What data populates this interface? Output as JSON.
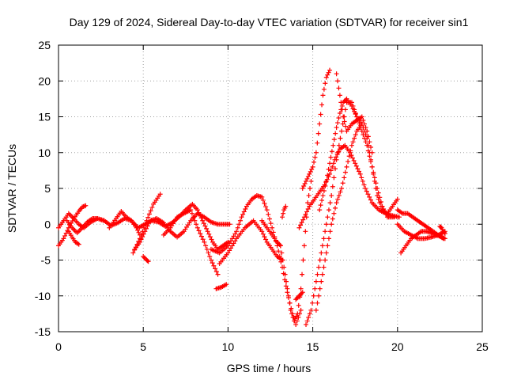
{
  "chart_data": {
    "type": "scatter",
    "title": "Day 129 of 2024, Sidereal Day-to-day VTEC variation (SDTVAR) for receiver sin1",
    "xlabel": "GPS time / hours",
    "ylabel": "SDTVAR / TECUs",
    "xlim": [
      0,
      25
    ],
    "ylim": [
      -15,
      25
    ],
    "xticks": [
      "0",
      "5",
      "10",
      "15",
      "20",
      "25"
    ],
    "yticks": [
      "-15",
      "-10",
      "-5",
      "0",
      "5",
      "10",
      "15",
      "20",
      "25"
    ],
    "grid": true,
    "legend": "none",
    "marker": "+",
    "series_color": "#ff0000",
    "series": [
      {
        "name": "track-1",
        "x": [
          0.0,
          0.3,
          0.6,
          0.9,
          1.2,
          1.5,
          1.9,
          2.3,
          2.7,
          3.1,
          3.5,
          3.9,
          4.3,
          4.7,
          5.1,
          5.5,
          5.9,
          6.3,
          6.7,
          7.1,
          7.5,
          7.9,
          8.2,
          8.5,
          8.8,
          9.1,
          9.4,
          9.7,
          10.0
        ],
        "y": [
          -0.5,
          0.5,
          1.5,
          0.8,
          0.0,
          -0.5,
          0.3,
          0.8,
          0.5,
          -0.2,
          0.2,
          0.8,
          0.5,
          -0.5,
          0.0,
          0.5,
          0.3,
          -0.3,
          0.2,
          1.0,
          2.0,
          2.8,
          2.0,
          0.5,
          -1.0,
          -2.5,
          -3.5,
          -3.0,
          -2.5
        ]
      },
      {
        "name": "track-2",
        "x": [
          0.0,
          0.3,
          0.6,
          0.9,
          1.2,
          1.4,
          1.6
        ],
        "y": [
          -3.0,
          -2.0,
          -0.5,
          0.8,
          1.8,
          2.4,
          2.6
        ]
      },
      {
        "name": "track-3",
        "x": [
          0.5,
          0.8,
          1.1,
          1.4,
          1.7,
          2.0,
          2.3,
          2.7
        ],
        "y": [
          0.5,
          -0.5,
          -1.2,
          -0.5,
          0.3,
          0.8,
          0.8,
          0.5
        ]
      },
      {
        "name": "track-4",
        "x": [
          0.6,
          0.8,
          1.0,
          1.2
        ],
        "y": [
          -1.0,
          -1.8,
          -2.5,
          -2.8
        ]
      },
      {
        "name": "track-5",
        "x": [
          3.0,
          3.4,
          3.7,
          4.0,
          4.3,
          4.6,
          4.8
        ],
        "y": [
          -0.5,
          0.8,
          1.8,
          1.0,
          0.5,
          -0.5,
          -1.5
        ]
      },
      {
        "name": "track-6",
        "x": [
          4.4,
          4.8,
          5.2,
          5.6,
          6.0
        ],
        "y": [
          -4.0,
          -2.0,
          0.5,
          2.8,
          4.2
        ]
      },
      {
        "name": "track-7",
        "x": [
          4.5,
          4.8,
          5.1,
          5.4,
          5.8,
          6.2,
          6.6,
          7.0,
          7.4,
          7.8,
          8.2,
          8.6,
          9.0,
          9.4,
          9.8,
          10.1
        ],
        "y": [
          -3.5,
          -2.5,
          -1.0,
          0.5,
          0.8,
          0.2,
          -1.0,
          -1.8,
          -1.0,
          0.5,
          1.5,
          1.0,
          0.3,
          0.0,
          0.0,
          0.0
        ]
      },
      {
        "name": "track-8",
        "x": [
          5.0,
          5.2,
          5.3
        ],
        "y": [
          -4.5,
          -5.0,
          -5.2
        ]
      },
      {
        "name": "track-9",
        "x": [
          6.2,
          6.6,
          7.0,
          7.4,
          7.8,
          8.2,
          8.6,
          9.0,
          9.4
        ],
        "y": [
          -1.5,
          -0.5,
          1.0,
          1.5,
          2.0,
          -0.5,
          -2.5,
          -5.0,
          -7.0
        ]
      },
      {
        "name": "track-10",
        "x": [
          9.3,
          9.6,
          9.9
        ],
        "y": [
          -9.0,
          -8.8,
          -8.4
        ]
      },
      {
        "name": "track-11",
        "x": [
          9.0,
          9.5,
          10.0,
          10.5,
          10.8,
          11.1,
          11.4,
          11.7,
          12.0,
          12.3,
          12.6,
          12.9,
          13.2,
          13.5,
          13.8,
          14.0,
          14.3
        ],
        "y": [
          -3.5,
          -4.0,
          -3.0,
          -1.0,
          1.0,
          2.5,
          3.5,
          4.0,
          3.8,
          2.0,
          -0.5,
          -3.0,
          -6.0,
          -9.5,
          -12.5,
          -14.0,
          -12.0
        ]
      },
      {
        "name": "track-12",
        "x": [
          9.5,
          10.0,
          10.5,
          11.0,
          11.5,
          12.0,
          12.3,
          12.6,
          12.9,
          13.2
        ],
        "y": [
          -5.5,
          -4.0,
          -2.0,
          -0.5,
          0.5,
          -1.0,
          -2.5,
          -3.5,
          -4.5,
          -5.0
        ]
      },
      {
        "name": "track-13",
        "x": [
          12.0,
          12.3,
          12.6,
          12.9,
          13.1
        ],
        "y": [
          0.5,
          -0.5,
          -1.5,
          -2.5,
          -3.0
        ]
      },
      {
        "name": "track-14",
        "x": [
          13.1,
          13.3,
          13.5,
          13.7,
          13.9,
          14.1,
          14.3,
          14.5,
          14.7,
          14.9
        ],
        "y": [
          -3.0,
          -6.0,
          -9.0,
          -12.0,
          -13.5,
          -12.5,
          -9.0,
          -3.0,
          3.0,
          6.0
        ]
      },
      {
        "name": "track-15",
        "x": [
          13.2,
          13.3,
          13.4
        ],
        "y": [
          1.0,
          2.0,
          2.5
        ]
      },
      {
        "name": "track-16",
        "x": [
          14.0,
          14.2,
          14.4
        ],
        "y": [
          -10.5,
          -10.0,
          -9.5
        ]
      },
      {
        "name": "track-17",
        "x": [
          14.2,
          14.5,
          14.8,
          15.1,
          15.4,
          15.7,
          16.0,
          16.3,
          16.6,
          16.9,
          17.2,
          17.5,
          17.8,
          18.1,
          18.5,
          18.9,
          19.3,
          19.7,
          20.1
        ],
        "y": [
          -0.5,
          1.0,
          2.5,
          3.5,
          4.5,
          5.5,
          7.0,
          9.0,
          10.5,
          11.0,
          10.0,
          8.5,
          7.0,
          5.0,
          3.0,
          2.0,
          1.5,
          1.2,
          1.0
        ]
      },
      {
        "name": "track-18",
        "x": [
          14.4,
          14.6,
          14.8,
          15.0,
          15.2,
          15.4,
          15.6,
          15.8,
          16.0
        ],
        "y": [
          5.0,
          6.0,
          7.0,
          8.0,
          10.0,
          14.0,
          18.0,
          20.5,
          21.5
        ]
      },
      {
        "name": "track-19",
        "x": [
          14.6,
          14.9,
          15.2,
          15.5,
          15.8,
          16.1,
          16.4,
          16.7,
          17.0,
          17.3,
          17.6,
          17.9,
          18.2,
          18.5,
          18.8,
          19.1,
          19.4,
          19.7,
          20.0
        ],
        "y": [
          -14.0,
          -12.0,
          -8.0,
          -4.0,
          0.0,
          4.0,
          9.0,
          13.0,
          17.0,
          17.0,
          15.0,
          14.0,
          12.0,
          8.0,
          4.0,
          2.0,
          1.5,
          2.5,
          3.5
        ]
      },
      {
        "name": "track-20",
        "x": [
          15.2,
          15.5,
          15.8,
          16.1,
          16.4,
          16.7,
          17.0,
          17.3,
          17.6,
          17.9
        ],
        "y": [
          -12.0,
          -8.0,
          -4.0,
          0.0,
          3.0,
          5.0,
          8.0,
          11.0,
          13.0,
          14.0
        ]
      },
      {
        "name": "track-21",
        "x": [
          15.4,
          15.6,
          15.8,
          16.0,
          16.2,
          16.4,
          16.6,
          16.8,
          17.0,
          17.3,
          17.6,
          17.9,
          18.2,
          18.5,
          18.8,
          19.1,
          19.4,
          19.8
        ],
        "y": [
          2.0,
          4.0,
          6.0,
          8.5,
          11.0,
          13.5,
          15.5,
          17.0,
          17.5,
          16.5,
          15.0,
          13.0,
          11.0,
          8.0,
          5.0,
          2.5,
          1.0,
          1.0
        ]
      },
      {
        "name": "track-22",
        "x": [
          16.4,
          16.6,
          16.8,
          17.0,
          17.3,
          17.6,
          17.9,
          18.2,
          18.5
        ],
        "y": [
          21.0,
          18.0,
          15.0,
          13.0,
          14.0,
          14.5,
          15.0,
          13.0,
          10.0
        ]
      },
      {
        "name": "track-23",
        "x": [
          20.2,
          20.5,
          20.8,
          21.1,
          21.4,
          21.7,
          22.0,
          22.3,
          22.6,
          22.8
        ],
        "y": [
          -4.0,
          -3.0,
          -2.0,
          -1.5,
          -1.0,
          -1.0,
          -1.2,
          -1.5,
          -1.8,
          -2.0
        ]
      },
      {
        "name": "track-24",
        "x": [
          20.0,
          20.3,
          20.6,
          20.9,
          21.2,
          21.5,
          21.8,
          22.1,
          22.4,
          22.7
        ],
        "y": [
          2.0,
          1.5,
          1.5,
          1.0,
          0.5,
          0.0,
          -0.5,
          -1.0,
          -1.5,
          -2.0
        ]
      },
      {
        "name": "track-25",
        "x": [
          20.0,
          20.4,
          20.8,
          21.2,
          21.6,
          22.0,
          22.4,
          22.8
        ],
        "y": [
          0.0,
          -1.0,
          -1.5,
          -2.0,
          -2.0,
          -1.8,
          -1.5,
          -1.0
        ]
      },
      {
        "name": "track-26",
        "x": [
          22.5,
          22.6,
          22.7,
          22.8
        ],
        "y": [
          -0.3,
          -0.5,
          -1.0,
          -1.3
        ]
      }
    ]
  }
}
